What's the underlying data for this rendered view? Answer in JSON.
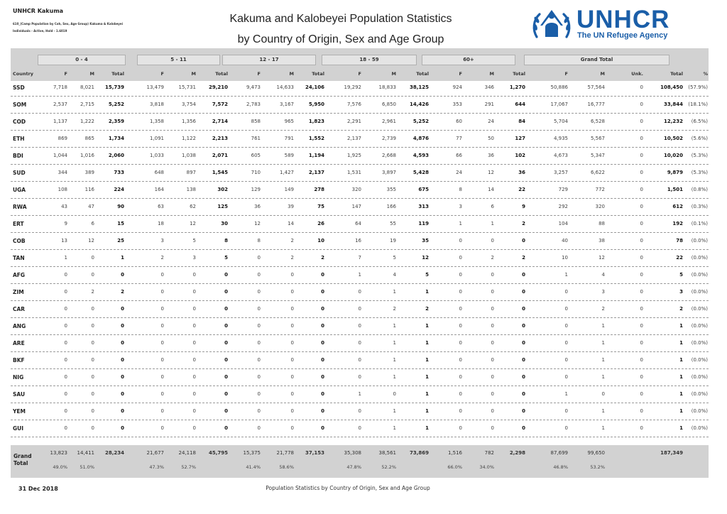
{
  "header": {
    "org": "UNHCR Kakuma",
    "subtitle1": "610_(Camp Population by Coh, Sex, Age Group) Kakuma & Kalobeyei",
    "subtitle2": "Individuals - Active, Hold - 1.6019",
    "title_line1": "Kakuma and Kalobeyei Population Statistics",
    "title_line2": "by Country of Origin, Sex and Age Group",
    "logo_word": "UNHCR",
    "logo_tagline": "The UN Refugee Agency"
  },
  "colors": {
    "brand": "#1a5ea8",
    "header_bg": "#d2d2d2"
  },
  "groups": [
    "0 - 4",
    "5 - 11",
    "12 - 17",
    "18 - 59",
    "60+",
    "Grand Total"
  ],
  "col_labels": {
    "country": "Country",
    "f": "F",
    "m": "M",
    "total": "Total",
    "unk": "Unk.",
    "pct": "%"
  },
  "rows": [
    {
      "c": "SSD",
      "v": [
        "7,718",
        "8,021",
        "15,739",
        "13,479",
        "15,731",
        "29,210",
        "9,473",
        "14,633",
        "24,106",
        "19,292",
        "18,833",
        "38,125",
        "924",
        "346",
        "1,270",
        "50,886",
        "57,564",
        "0",
        "108,450",
        "(57.9%)"
      ]
    },
    {
      "c": "SOM",
      "v": [
        "2,537",
        "2,715",
        "5,252",
        "3,818",
        "3,754",
        "7,572",
        "2,783",
        "3,167",
        "5,950",
        "7,576",
        "6,850",
        "14,426",
        "353",
        "291",
        "644",
        "17,067",
        "16,777",
        "0",
        "33,844",
        "(18.1%)"
      ]
    },
    {
      "c": "COD",
      "v": [
        "1,137",
        "1,222",
        "2,359",
        "1,358",
        "1,356",
        "2,714",
        "858",
        "965",
        "1,823",
        "2,291",
        "2,961",
        "5,252",
        "60",
        "24",
        "84",
        "5,704",
        "6,528",
        "0",
        "12,232",
        "(6.5%)"
      ]
    },
    {
      "c": "ETH",
      "v": [
        "869",
        "865",
        "1,734",
        "1,091",
        "1,122",
        "2,213",
        "761",
        "791",
        "1,552",
        "2,137",
        "2,739",
        "4,876",
        "77",
        "50",
        "127",
        "4,935",
        "5,567",
        "0",
        "10,502",
        "(5.6%)"
      ]
    },
    {
      "c": "BDI",
      "v": [
        "1,044",
        "1,016",
        "2,060",
        "1,033",
        "1,038",
        "2,071",
        "605",
        "589",
        "1,194",
        "1,925",
        "2,668",
        "4,593",
        "66",
        "36",
        "102",
        "4,673",
        "5,347",
        "0",
        "10,020",
        "(5.3%)"
      ]
    },
    {
      "c": "SUD",
      "v": [
        "344",
        "389",
        "733",
        "648",
        "897",
        "1,545",
        "710",
        "1,427",
        "2,137",
        "1,531",
        "3,897",
        "5,428",
        "24",
        "12",
        "36",
        "3,257",
        "6,622",
        "0",
        "9,879",
        "(5.3%)"
      ]
    },
    {
      "c": "UGA",
      "v": [
        "108",
        "116",
        "224",
        "164",
        "138",
        "302",
        "129",
        "149",
        "278",
        "320",
        "355",
        "675",
        "8",
        "14",
        "22",
        "729",
        "772",
        "0",
        "1,501",
        "(0.8%)"
      ]
    },
    {
      "c": "RWA",
      "v": [
        "43",
        "47",
        "90",
        "63",
        "62",
        "125",
        "36",
        "39",
        "75",
        "147",
        "166",
        "313",
        "3",
        "6",
        "9",
        "292",
        "320",
        "0",
        "612",
        "(0.3%)"
      ]
    },
    {
      "c": "ERT",
      "v": [
        "9",
        "6",
        "15",
        "18",
        "12",
        "30",
        "12",
        "14",
        "26",
        "64",
        "55",
        "119",
        "1",
        "1",
        "2",
        "104",
        "88",
        "0",
        "192",
        "(0.1%)"
      ]
    },
    {
      "c": "COB",
      "v": [
        "13",
        "12",
        "25",
        "3",
        "5",
        "8",
        "8",
        "2",
        "10",
        "16",
        "19",
        "35",
        "0",
        "0",
        "0",
        "40",
        "38",
        "0",
        "78",
        "(0.0%)"
      ]
    },
    {
      "c": "TAN",
      "v": [
        "1",
        "0",
        "1",
        "2",
        "3",
        "5",
        "0",
        "2",
        "2",
        "7",
        "5",
        "12",
        "0",
        "2",
        "2",
        "10",
        "12",
        "0",
        "22",
        "(0.0%)"
      ]
    },
    {
      "c": "AFG",
      "v": [
        "0",
        "0",
        "0",
        "0",
        "0",
        "0",
        "0",
        "0",
        "0",
        "1",
        "4",
        "5",
        "0",
        "0",
        "0",
        "1",
        "4",
        "0",
        "5",
        "(0.0%)"
      ]
    },
    {
      "c": "ZIM",
      "v": [
        "0",
        "2",
        "2",
        "0",
        "0",
        "0",
        "0",
        "0",
        "0",
        "0",
        "1",
        "1",
        "0",
        "0",
        "0",
        "0",
        "3",
        "0",
        "3",
        "(0.0%)"
      ]
    },
    {
      "c": "CAR",
      "v": [
        "0",
        "0",
        "0",
        "0",
        "0",
        "0",
        "0",
        "0",
        "0",
        "0",
        "2",
        "2",
        "0",
        "0",
        "0",
        "0",
        "2",
        "0",
        "2",
        "(0.0%)"
      ]
    },
    {
      "c": "ANG",
      "v": [
        "0",
        "0",
        "0",
        "0",
        "0",
        "0",
        "0",
        "0",
        "0",
        "0",
        "1",
        "1",
        "0",
        "0",
        "0",
        "0",
        "1",
        "0",
        "1",
        "(0.0%)"
      ]
    },
    {
      "c": "ARE",
      "v": [
        "0",
        "0",
        "0",
        "0",
        "0",
        "0",
        "0",
        "0",
        "0",
        "0",
        "1",
        "1",
        "0",
        "0",
        "0",
        "0",
        "1",
        "0",
        "1",
        "(0.0%)"
      ]
    },
    {
      "c": "BKF",
      "v": [
        "0",
        "0",
        "0",
        "0",
        "0",
        "0",
        "0",
        "0",
        "0",
        "0",
        "1",
        "1",
        "0",
        "0",
        "0",
        "0",
        "1",
        "0",
        "1",
        "(0.0%)"
      ]
    },
    {
      "c": "NIG",
      "v": [
        "0",
        "0",
        "0",
        "0",
        "0",
        "0",
        "0",
        "0",
        "0",
        "0",
        "1",
        "1",
        "0",
        "0",
        "0",
        "0",
        "1",
        "0",
        "1",
        "(0.0%)"
      ]
    },
    {
      "c": "SAU",
      "v": [
        "0",
        "0",
        "0",
        "0",
        "0",
        "0",
        "0",
        "0",
        "0",
        "1",
        "0",
        "1",
        "0",
        "0",
        "0",
        "1",
        "0",
        "0",
        "1",
        "(0.0%)"
      ]
    },
    {
      "c": "YEM",
      "v": [
        "0",
        "0",
        "0",
        "0",
        "0",
        "0",
        "0",
        "0",
        "0",
        "0",
        "1",
        "1",
        "0",
        "0",
        "0",
        "0",
        "1",
        "0",
        "1",
        "(0.0%)"
      ]
    },
    {
      "c": "GUI",
      "v": [
        "0",
        "0",
        "0",
        "0",
        "0",
        "0",
        "0",
        "0",
        "0",
        "0",
        "1",
        "1",
        "0",
        "0",
        "0",
        "0",
        "1",
        "0",
        "1",
        "(0.0%)"
      ]
    }
  ],
  "grand_total": {
    "label_line1": "Grand",
    "label_line2": "Total",
    "values": [
      "13,823",
      "14,411",
      "28,234",
      "21,677",
      "24,118",
      "45,795",
      "15,375",
      "21,778",
      "37,153",
      "35,308",
      "38,561",
      "73,869",
      "1,516",
      "782",
      "2,298",
      "87,699",
      "99,650",
      "",
      "187,349",
      ""
    ],
    "pcts": [
      "49.0%",
      "51.0%",
      "",
      "47.3%",
      "52.7%",
      "",
      "41.4%",
      "58.6%",
      "",
      "47.8%",
      "52.2%",
      "",
      "66.0%",
      "34.0%",
      "",
      "46.8%",
      "53.2%",
      "",
      "",
      ""
    ]
  },
  "footer": {
    "date": "31 Dec 2018",
    "text": "Population Statistics by Country of Origin, Sex and Age Group"
  }
}
